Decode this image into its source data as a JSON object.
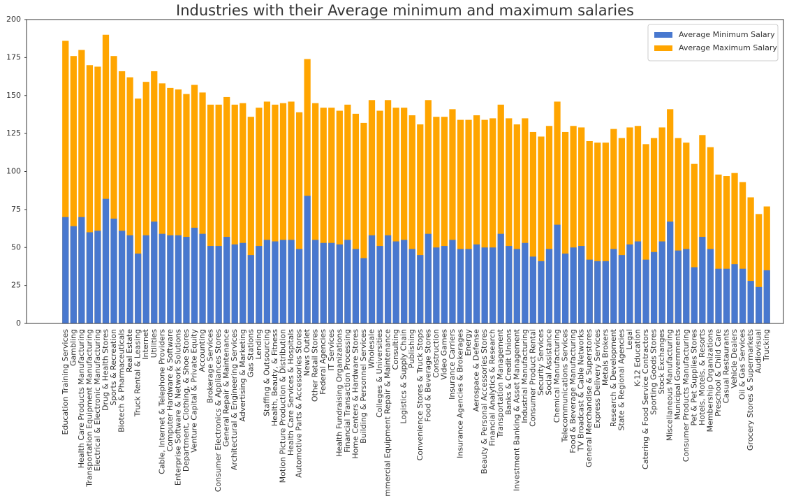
{
  "chart_data": {
    "type": "bar",
    "title": "Industries with their Average minimum and maximum salaries",
    "categories": [
      "Education Training Services",
      "Gambling",
      "Health Care Products Manufacturing",
      "Transportation Equipment Manufacturing",
      "Electrical & Electronic Manufacturing",
      "Drug & Health Stores",
      "Sports & Recreation",
      "Biotech & Pharmaceuticals",
      "Real Estate",
      "Truck Rental & Leasing",
      "Internet",
      "Utilities",
      "Cable, Internet & Telephone Providers",
      "Computer Hardware & Software",
      "Enterprise Software & Network Solutions",
      "Department, Clothing, & Shoe Stores",
      "Venture Capital & Private Equity",
      "Accounting",
      "Brokerage Services",
      "Consumer Electronics & Appliances Stores",
      "General Repair & Maintenance",
      "Architectural & Engineering Services",
      "Advertising & Marketing",
      "Gas Stations",
      "Lending",
      "Staffing & Outsourcing",
      "Health, Beauty, & Fitness",
      "Motion Picture Production & Distribution",
      "Health Care Services & Hospitals",
      "Automotive Parts & Accessories Stores",
      "News Outlet",
      "Other Retail Stores",
      "Federal Agencies",
      "IT Services",
      "Health Fundraising Organizations",
      "Financial Transaction Processing",
      "Home Centers & Hardware Stores",
      "Building & Personnel Services",
      "Wholesale",
      "Colleges & Universities",
      "Commercial Equipment Repair & Maintenance",
      "Consulting",
      "Logistics & Supply Chain",
      "Publishing",
      "Convenience Stores & Truck Stops",
      "Food & Beverage Stores",
      "Construction",
      "Video Games",
      "Insurance Carriers",
      "Insurance Agencies & Brokerages",
      "Energy",
      "Aerospace & Defense",
      "Beauty & Personal Accessories Stores",
      "Financial Analytics & Research",
      "Transportation Management",
      "Banks & Credit Unions",
      "Investment Banking & Asset Management",
      "Industrial Manufacturing",
      "Consumer Product Rental",
      "Security Services",
      "Social Assistance",
      "Chemical Manufacturing",
      "Telecommunications Services",
      "Food & Beverage Manufacturing",
      "TV Broadcast & Cable Networks",
      "General Merchandise & Superstores",
      "Express Delivery Services",
      "Metals Brokers",
      "Research & Development",
      "State & Regional Agencies",
      "Legal",
      "K-12 Education",
      "Catering & Food Service Contractors",
      "Sporting Goods Stores",
      "Stock Exchanges",
      "Miscellaneous Manufacturing",
      "Municipal Governments",
      "Consumer Products Manufacturing",
      "Pet & Pet Supplies Stores",
      "Hotels, Motels, & Resorts",
      "Membership Organizations",
      "Preschool & Child Care",
      "Casual Restaurants",
      "Vehicle Dealers",
      "Oil & Gas Services",
      "Grocery Stores & Supermarkets",
      "Audiovisual",
      "Trucking"
    ],
    "series": [
      {
        "name": "Average Minimum Salary",
        "color": "#4878cf",
        "values": [
          70,
          64,
          70,
          60,
          61,
          82,
          69,
          61,
          58,
          46,
          58,
          67,
          59,
          58,
          58,
          57,
          63,
          59,
          51,
          51,
          57,
          52,
          53,
          45,
          51,
          55,
          54,
          55,
          55,
          49,
          84,
          55,
          53,
          53,
          52,
          55,
          49,
          43,
          58,
          51,
          58,
          54,
          55,
          49,
          45,
          59,
          50,
          51,
          55,
          49,
          49,
          52,
          50,
          50,
          59,
          51,
          49,
          53,
          44,
          41,
          49,
          65,
          46,
          50,
          51,
          42,
          41,
          41,
          49,
          45,
          52,
          54,
          42,
          47,
          54,
          67,
          48,
          49,
          37,
          57,
          49,
          36,
          36,
          39,
          36,
          28,
          24,
          35
        ]
      },
      {
        "name": "Average Maximum Salary",
        "color": "#ffa500",
        "values": [
          186,
          176,
          180,
          170,
          169,
          190,
          176,
          166,
          162,
          148,
          159,
          166,
          158,
          155,
          154,
          151,
          157,
          152,
          144,
          144,
          149,
          144,
          145,
          136,
          142,
          146,
          144,
          145,
          146,
          139,
          174,
          145,
          142,
          142,
          140,
          144,
          138,
          132,
          147,
          140,
          147,
          142,
          142,
          137,
          131,
          147,
          136,
          136,
          141,
          134,
          134,
          137,
          134,
          135,
          144,
          135,
          131,
          135,
          126,
          123,
          130,
          146,
          126,
          130,
          129,
          120,
          119,
          119,
          128,
          122,
          129,
          130,
          118,
          122,
          129,
          141,
          122,
          119,
          105,
          124,
          116,
          98,
          97,
          99,
          93,
          83,
          72,
          77
        ]
      }
    ],
    "ylim": [
      0,
      200
    ],
    "yticks": [
      0,
      25,
      50,
      75,
      100,
      125,
      150,
      175,
      200
    ],
    "legend": "upper right"
  }
}
